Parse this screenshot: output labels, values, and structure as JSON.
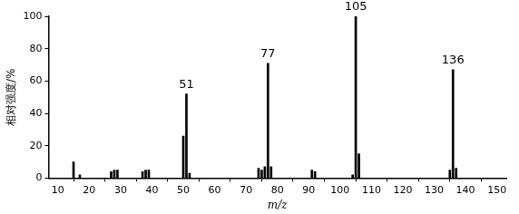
{
  "chart_data": {
    "type": "bar",
    "x_label": "m/z",
    "y_label": "相对强度/%",
    "x": [
      15,
      17,
      27,
      28,
      29,
      37,
      38,
      39,
      50,
      51,
      52,
      74,
      75,
      76,
      77,
      78,
      91,
      92,
      104,
      105,
      106,
      135,
      136,
      137
    ],
    "values": [
      10,
      2,
      4,
      5,
      5,
      4,
      5,
      5,
      26,
      52,
      3,
      6,
      5,
      7,
      71,
      7,
      5,
      4,
      2,
      100,
      15,
      5,
      67,
      6
    ],
    "color": "#000000",
    "xlim": [
      7,
      153
    ],
    "xticks": [
      10,
      20,
      30,
      40,
      50,
      60,
      70,
      80,
      90,
      100,
      110,
      120,
      130,
      140,
      150
    ],
    "ylim": [
      0,
      100
    ],
    "yticks": [
      0,
      20,
      40,
      60,
      80,
      100
    ],
    "grid": false,
    "annotations": [
      {
        "x": 51,
        "text": "51"
      },
      {
        "x": 77,
        "text": "77"
      },
      {
        "x": 105,
        "text": "105"
      },
      {
        "x": 136,
        "text": "136"
      }
    ]
  }
}
